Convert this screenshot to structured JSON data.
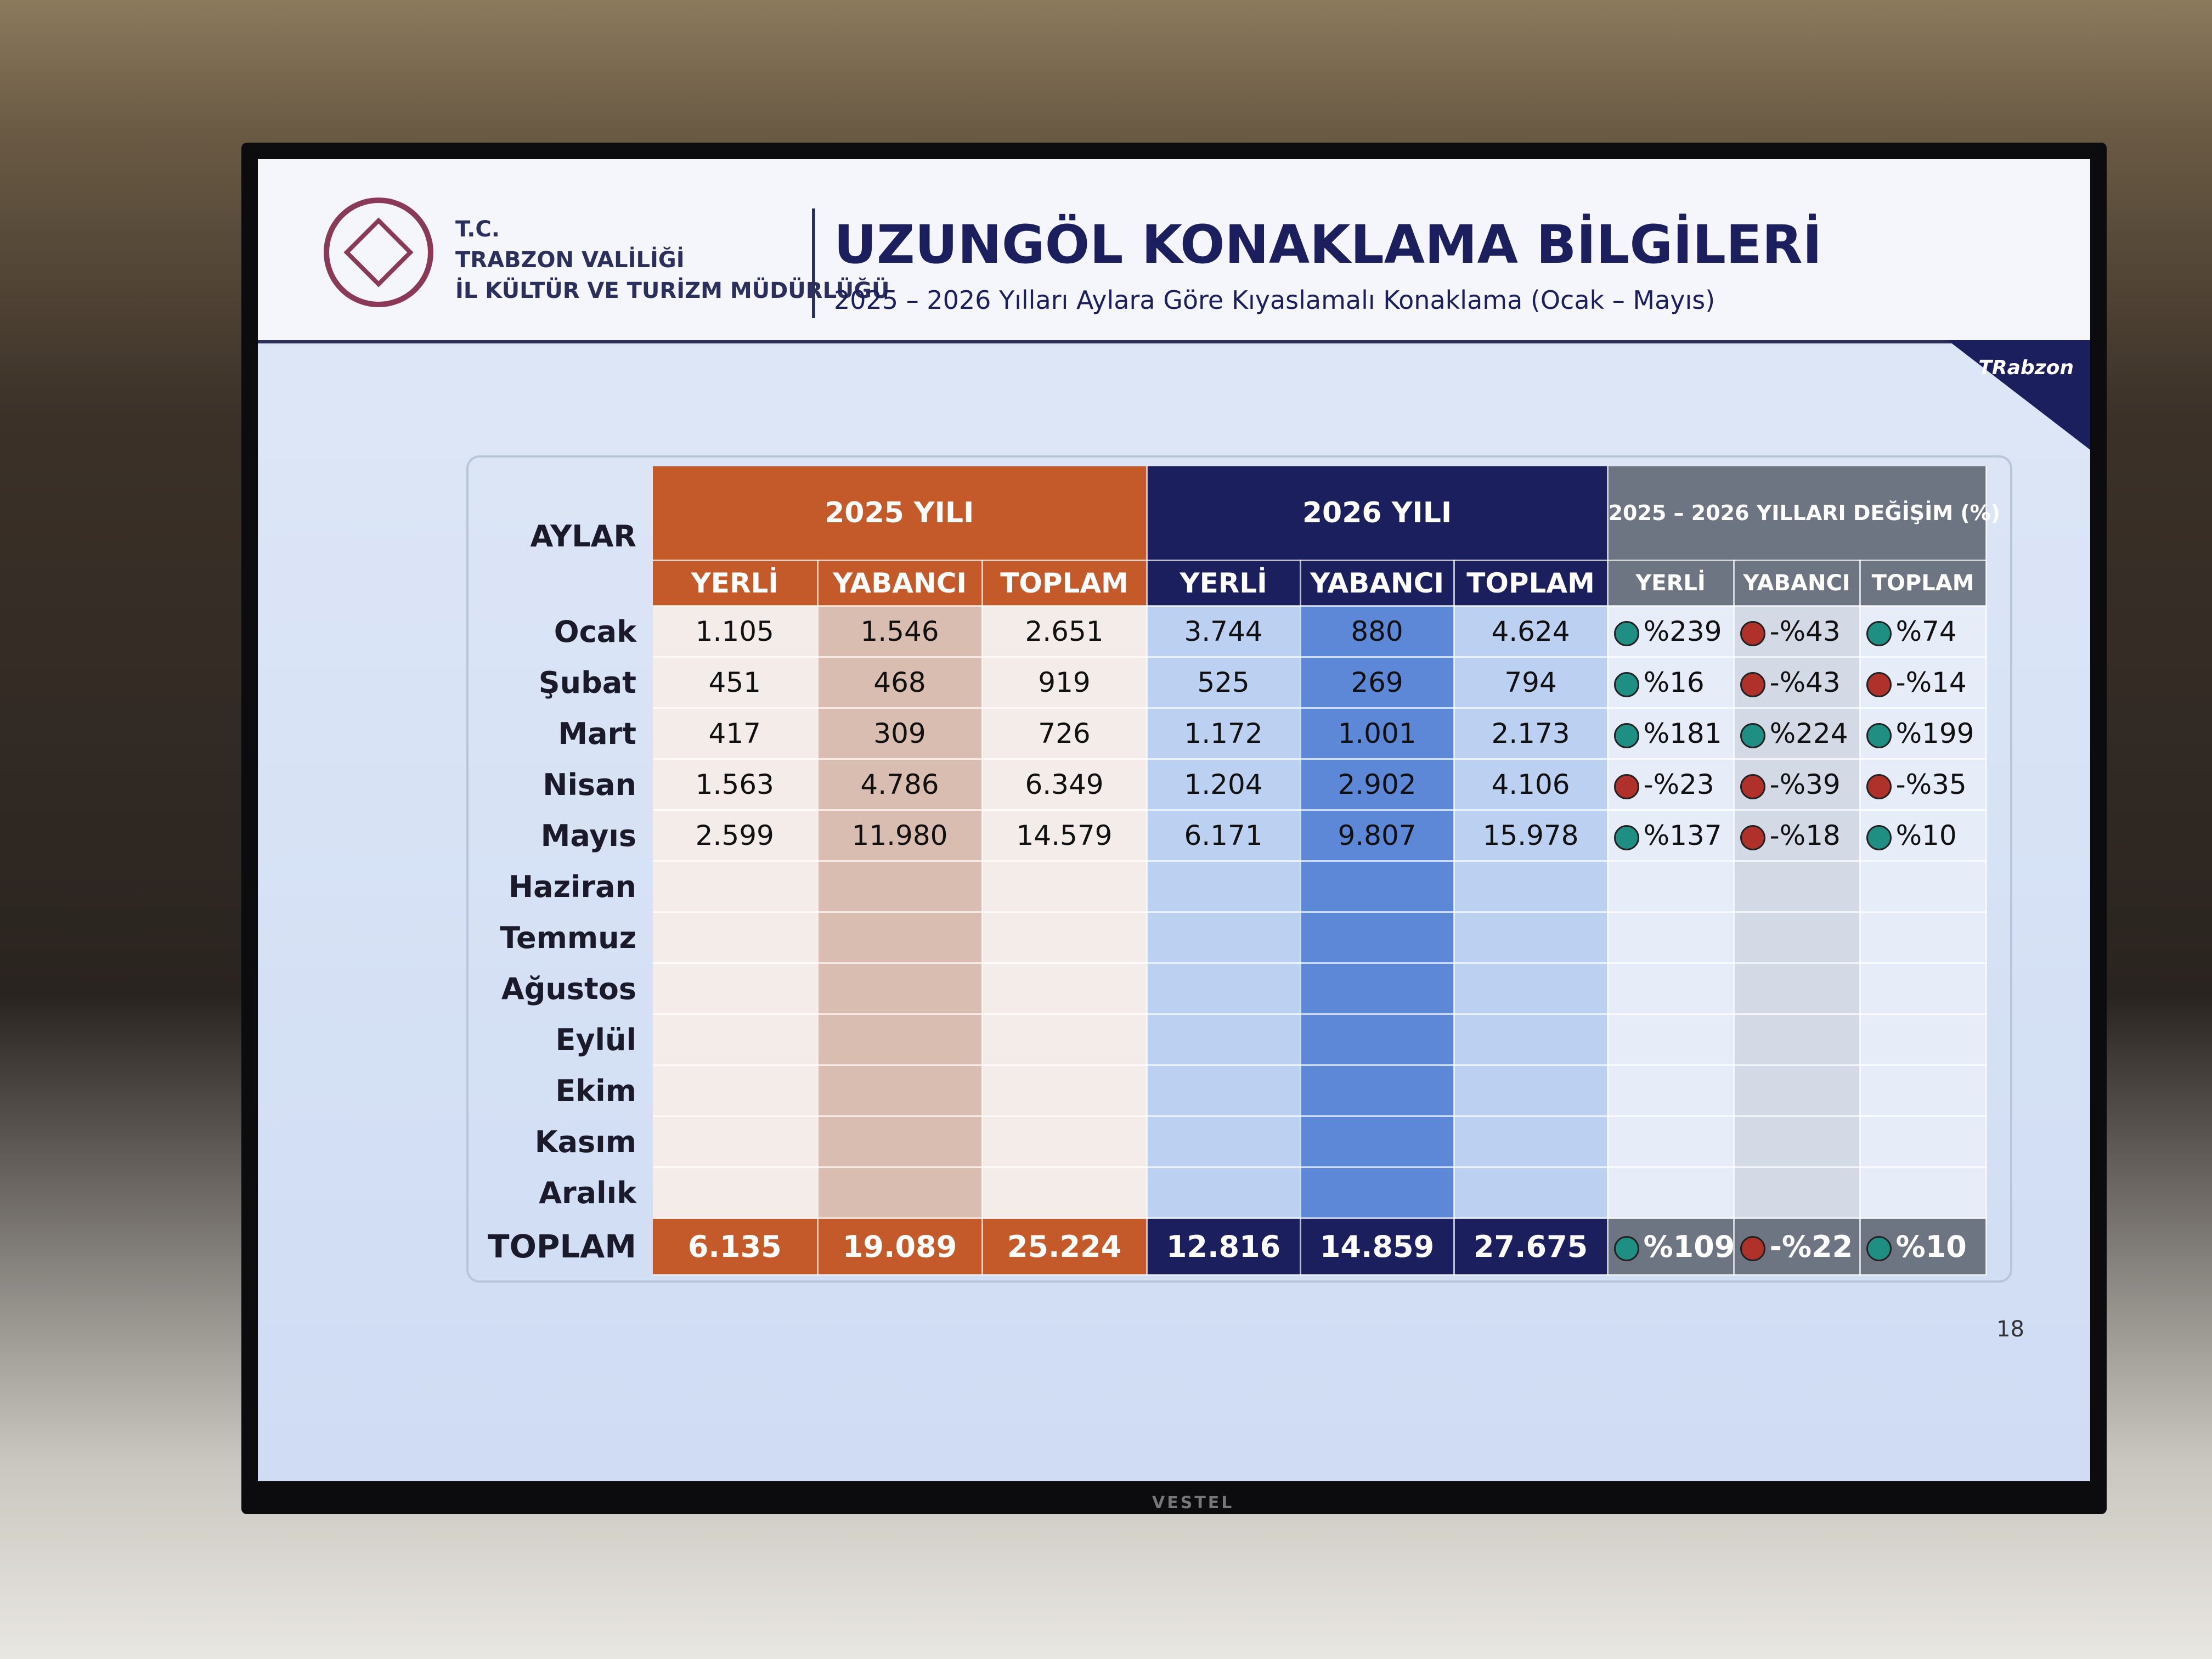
{
  "header": {
    "org": [
      "T.C.",
      "TRABZON VALİLİĞİ",
      "İL KÜLTÜR VE TURİZM MÜDÜRLÜĞÜ"
    ],
    "title": "UZUNGÖL KONAKLAMA BİLGİLERİ",
    "subtitle": "2025 – 2026 Yılları Aylara Göre Kıyaslamalı Konaklama (Ocak – Mayıs)",
    "logo": "TRabzon"
  },
  "table": {
    "corner": "AYLAR",
    "groups": [
      {
        "label": "2025 YILI",
        "color": "#c45a2a",
        "fills": [
          "#f3ece9",
          "#d9bdb0",
          "#f3ece9"
        ],
        "columns": [
          "YERLİ",
          "YABANCI",
          "TOPLAM"
        ]
      },
      {
        "label": "2026 YILI",
        "color": "#1b1f5e",
        "fills": [
          "#bcd0f1",
          "#5d88d8",
          "#bcd0f1"
        ],
        "columns": [
          "YERLİ",
          "YABANCI",
          "TOPLAM"
        ]
      },
      {
        "label": "2025 – 2026 YILLARI DEĞİŞİM (%)",
        "color": "#6e7582",
        "fills": [
          "#e6edf8",
          "#d3dae6",
          "#e6edf8"
        ],
        "columns": [
          "YERLİ",
          "YABANCI",
          "TOPLAM"
        ]
      }
    ],
    "rows": [
      {
        "month": "Ocak",
        "cells": [
          "1.105",
          "1.546",
          "2.651",
          "3.744",
          "880",
          "4.624"
        ],
        "change": [
          {
            "text": "%239",
            "color": "#1f8f83"
          },
          {
            "text": "-%43",
            "color": "#b0302a"
          },
          {
            "text": "%74",
            "color": "#1f8f83"
          }
        ]
      },
      {
        "month": "Şubat",
        "cells": [
          "451",
          "468",
          "919",
          "525",
          "269",
          "794"
        ],
        "change": [
          {
            "text": "%16",
            "color": "#1f8f83"
          },
          {
            "text": "-%43",
            "color": "#b0302a"
          },
          {
            "text": "-%14",
            "color": "#b0302a"
          }
        ]
      },
      {
        "month": "Mart",
        "cells": [
          "417",
          "309",
          "726",
          "1.172",
          "1.001",
          "2.173"
        ],
        "change": [
          {
            "text": "%181",
            "color": "#1f8f83"
          },
          {
            "text": "%224",
            "color": "#1f8f83"
          },
          {
            "text": "%199",
            "color": "#1f8f83"
          }
        ]
      },
      {
        "month": "Nisan",
        "cells": [
          "1.563",
          "4.786",
          "6.349",
          "1.204",
          "2.902",
          "4.106"
        ],
        "change": [
          {
            "text": "-%23",
            "color": "#b0302a"
          },
          {
            "text": "-%39",
            "color": "#b0302a"
          },
          {
            "text": "-%35",
            "color": "#b0302a"
          }
        ]
      },
      {
        "month": "Mayıs",
        "cells": [
          "2.599",
          "11.980",
          "14.579",
          "6.171",
          "9.807",
          "15.978"
        ],
        "change": [
          {
            "text": "%137",
            "color": "#1f8f83"
          },
          {
            "text": "-%18",
            "color": "#b0302a"
          },
          {
            "text": "%10",
            "color": "#1f8f83"
          }
        ]
      },
      {
        "month": "Haziran"
      },
      {
        "month": "Temmuz"
      },
      {
        "month": "Ağustos"
      },
      {
        "month": "Eylül"
      },
      {
        "month": "Ekim"
      },
      {
        "month": "Kasım"
      },
      {
        "month": "Aralık"
      }
    ],
    "total": {
      "label": "TOPLAM",
      "cells": [
        "6.135",
        "19.089",
        "25.224",
        "12.816",
        "14.859",
        "27.675"
      ],
      "change": [
        {
          "text": "%109",
          "color": "#1f8f83"
        },
        {
          "text": "-%22",
          "color": "#b0302a"
        },
        {
          "text": "%10",
          "color": "#1f8f83"
        }
      ]
    }
  },
  "page_number": "18",
  "brand": "VESTEL"
}
